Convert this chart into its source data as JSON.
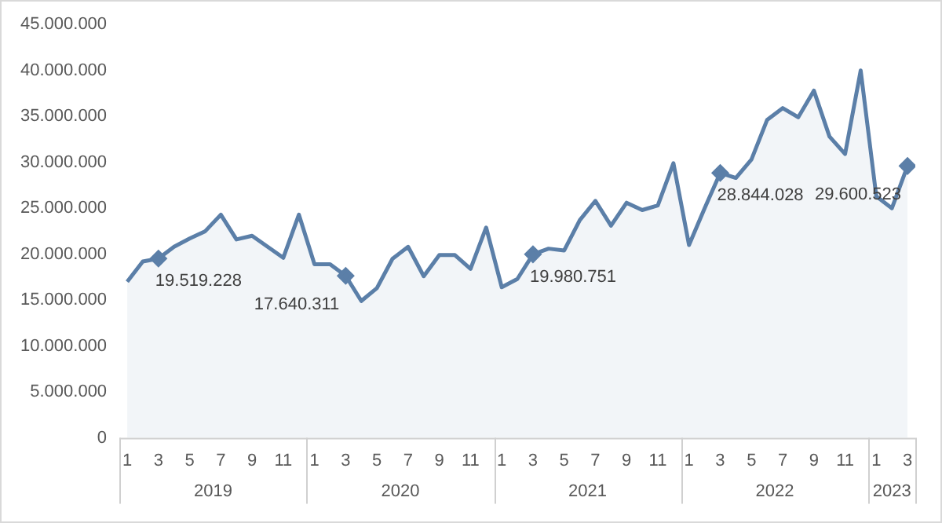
{
  "chart_data": {
    "type": "area",
    "x": [
      "2019-01",
      "2019-02",
      "2019-03",
      "2019-04",
      "2019-05",
      "2019-06",
      "2019-07",
      "2019-08",
      "2019-09",
      "2019-10",
      "2019-11",
      "2019-12",
      "2020-01",
      "2020-02",
      "2020-03",
      "2020-04",
      "2020-05",
      "2020-06",
      "2020-07",
      "2020-08",
      "2020-09",
      "2020-10",
      "2020-11",
      "2020-12",
      "2021-01",
      "2021-02",
      "2021-03",
      "2021-04",
      "2021-05",
      "2021-06",
      "2021-07",
      "2021-08",
      "2021-09",
      "2021-10",
      "2021-11",
      "2021-12",
      "2022-01",
      "2022-02",
      "2022-03",
      "2022-04",
      "2022-05",
      "2022-06",
      "2022-07",
      "2022-08",
      "2022-09",
      "2022-10",
      "2022-11",
      "2022-12",
      "2023-01",
      "2023-02",
      "2023-03"
    ],
    "xticks": [
      {
        "value": "2019-01",
        "label": "1"
      },
      {
        "value": "2019-03",
        "label": "3"
      },
      {
        "value": "2019-05",
        "label": "5"
      },
      {
        "value": "2019-07",
        "label": "7"
      },
      {
        "value": "2019-09",
        "label": "9"
      },
      {
        "value": "2019-11",
        "label": "11"
      },
      {
        "value": "2020-01",
        "label": "1"
      },
      {
        "value": "2020-03",
        "label": "3"
      },
      {
        "value": "2020-05",
        "label": "5"
      },
      {
        "value": "2020-07",
        "label": "7"
      },
      {
        "value": "2020-09",
        "label": "9"
      },
      {
        "value": "2020-11",
        "label": "11"
      },
      {
        "value": "2021-01",
        "label": "1"
      },
      {
        "value": "2021-03",
        "label": "3"
      },
      {
        "value": "2021-05",
        "label": "5"
      },
      {
        "value": "2021-07",
        "label": "7"
      },
      {
        "value": "2021-09",
        "label": "9"
      },
      {
        "value": "2021-11",
        "label": "11"
      },
      {
        "value": "2022-01",
        "label": "1"
      },
      {
        "value": "2022-03",
        "label": "3"
      },
      {
        "value": "2022-05",
        "label": "5"
      },
      {
        "value": "2022-07",
        "label": "7"
      },
      {
        "value": "2022-09",
        "label": "9"
      },
      {
        "value": "2022-11",
        "label": "11"
      },
      {
        "value": "2023-01",
        "label": "1"
      },
      {
        "value": "2023-03",
        "label": "3"
      }
    ],
    "values": [
      17000000,
      19200000,
      19519228,
      20800000,
      21700000,
      22500000,
      24300000,
      21600000,
      22000000,
      20800000,
      19600000,
      24300000,
      18900000,
      18900000,
      17640311,
      14900000,
      16300000,
      19500000,
      20800000,
      17600000,
      19900000,
      19900000,
      18400000,
      22900000,
      16400000,
      17300000,
      19980751,
      20600000,
      20400000,
      23700000,
      25800000,
      23100000,
      25600000,
      24800000,
      25300000,
      29900000,
      21000000,
      25000000,
      28844028,
      28300000,
      30300000,
      34600000,
      35900000,
      34900000,
      37800000,
      32800000,
      30900000,
      40000000,
      26300000,
      25000000,
      29600523
    ],
    "value_labels": [
      null,
      null,
      "19.519.228",
      null,
      null,
      null,
      null,
      null,
      null,
      null,
      null,
      null,
      null,
      null,
      "17.640.311",
      null,
      null,
      null,
      null,
      null,
      null,
      null,
      null,
      null,
      null,
      null,
      "19.980.751",
      null,
      null,
      null,
      null,
      null,
      null,
      null,
      null,
      null,
      null,
      null,
      "28.844.028",
      null,
      null,
      null,
      null,
      null,
      null,
      null,
      null,
      null,
      null,
      null,
      "29.600.523"
    ],
    "xlim": [
      "2018-12-16",
      "2023-03-16"
    ],
    "annotations": [
      "2019",
      "2020",
      "2021",
      "2022",
      "2023"
    ],
    "color": "#5b7fa8",
    "ylim": [
      0,
      45000000
    ],
    "yticks": [
      {
        "value": 0,
        "label": "0"
      },
      {
        "value": 5000000,
        "label": "5.000.000"
      },
      {
        "value": 10000000,
        "label": "10.000.000"
      },
      {
        "value": 15000000,
        "label": "15.000.000"
      },
      {
        "value": 20000000,
        "label": "20.000.000"
      },
      {
        "value": 25000000,
        "label": "25.000.000"
      },
      {
        "value": 30000000,
        "label": "30.000.000"
      },
      {
        "value": 35000000,
        "label": "35.000.000"
      },
      {
        "value": 40000000,
        "label": "40.000.000"
      },
      {
        "value": 45000000,
        "label": "45.000.000"
      }
    ]
  }
}
